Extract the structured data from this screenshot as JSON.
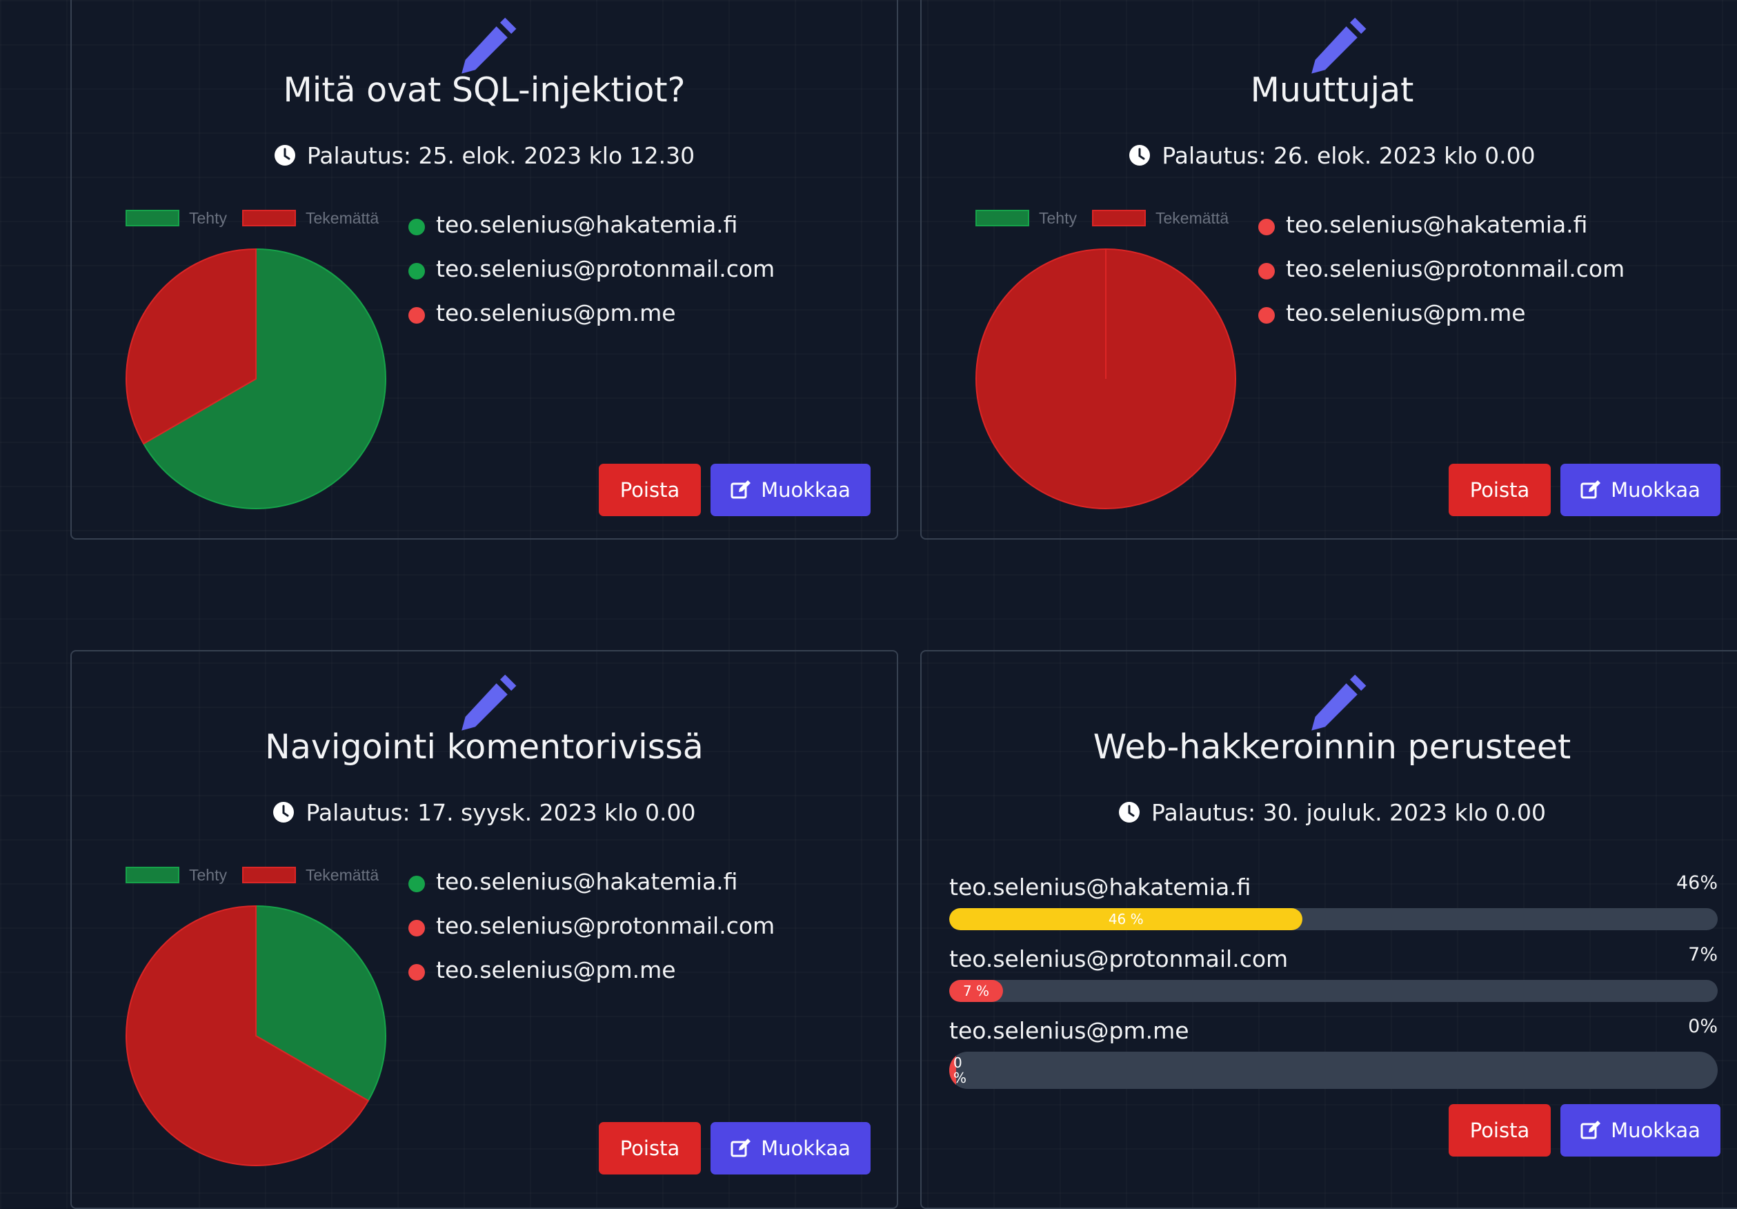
{
  "legend": {
    "done_label": "Tehty",
    "todo_label": "Tekemättä"
  },
  "colors": {
    "done": "#15803d",
    "todo": "#b91c1c",
    "dot_done": "#16a34a",
    "dot_todo": "#ef4444",
    "accent": "#6366f1",
    "delete": "#dc2626",
    "edit": "#4f46e5",
    "progress_high": "#facc15",
    "progress_low": "#ef4444"
  },
  "buttons": {
    "delete_label": "Poista",
    "edit_label": "Muokkaa"
  },
  "assignments": [
    {
      "title": "Mitä ovat SQL-injektiot?",
      "due": "Palautus: 25. elok. 2023 klo 12.30",
      "view": "pie",
      "students": [
        {
          "email": "teo.selenius@hakatemia.fi",
          "status": "done"
        },
        {
          "email": "teo.selenius@protonmail.com",
          "status": "done"
        },
        {
          "email": "teo.selenius@pm.me",
          "status": "todo"
        }
      ],
      "chart": {
        "done": 2,
        "todo": 1
      }
    },
    {
      "title": "Muuttujat",
      "due": "Palautus: 26. elok. 2023 klo 0.00",
      "view": "pie",
      "students": [
        {
          "email": "teo.selenius@hakatemia.fi",
          "status": "todo"
        },
        {
          "email": "teo.selenius@protonmail.com",
          "status": "todo"
        },
        {
          "email": "teo.selenius@pm.me",
          "status": "todo"
        }
      ],
      "chart": {
        "done": 0,
        "todo": 3
      }
    },
    {
      "title": "Navigointi komentorivissä",
      "due": "Palautus: 17. syysk. 2023 klo 0.00",
      "view": "pie",
      "students": [
        {
          "email": "teo.selenius@hakatemia.fi",
          "status": "done"
        },
        {
          "email": "teo.selenius@protonmail.com",
          "status": "todo"
        },
        {
          "email": "teo.selenius@pm.me",
          "status": "todo"
        }
      ],
      "chart": {
        "done": 1,
        "todo": 2
      }
    },
    {
      "title": "Web-hakkeroinnin perusteet",
      "due": "Palautus: 30. jouluk. 2023 klo 0.00",
      "view": "progress",
      "students": [
        {
          "email": "teo.selenius@hakatemia.fi",
          "percent": 46,
          "label": "46%",
          "bar_label": "46 %"
        },
        {
          "email": "teo.selenius@protonmail.com",
          "percent": 7,
          "label": "7%",
          "bar_label": "7 %"
        },
        {
          "email": "teo.selenius@pm.me",
          "percent": 0,
          "label": "0%",
          "bar_label": "0 %"
        }
      ]
    }
  ]
}
